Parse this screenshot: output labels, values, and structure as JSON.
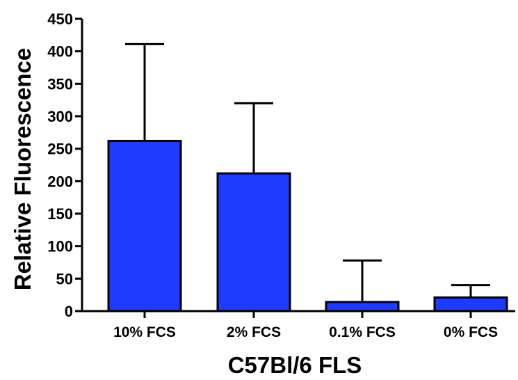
{
  "chart_data": {
    "type": "bar",
    "title": "",
    "xlabel": "C57Bl/6 FLS",
    "ylabel": "Relative Fluorescence",
    "categories": [
      "10% FCS",
      "2% FCS",
      "0.1% FCS",
      "0% FCS"
    ],
    "values": [
      262,
      212,
      14,
      21
    ],
    "error_upper": [
      411,
      320,
      78,
      40
    ],
    "ylim": [
      0,
      450
    ],
    "yticks": [
      "0",
      "50",
      "100",
      "150",
      "200",
      "250",
      "300",
      "350",
      "400",
      "450"
    ],
    "bar_color": "#1e3cff",
    "grid": false,
    "legend": "none"
  }
}
